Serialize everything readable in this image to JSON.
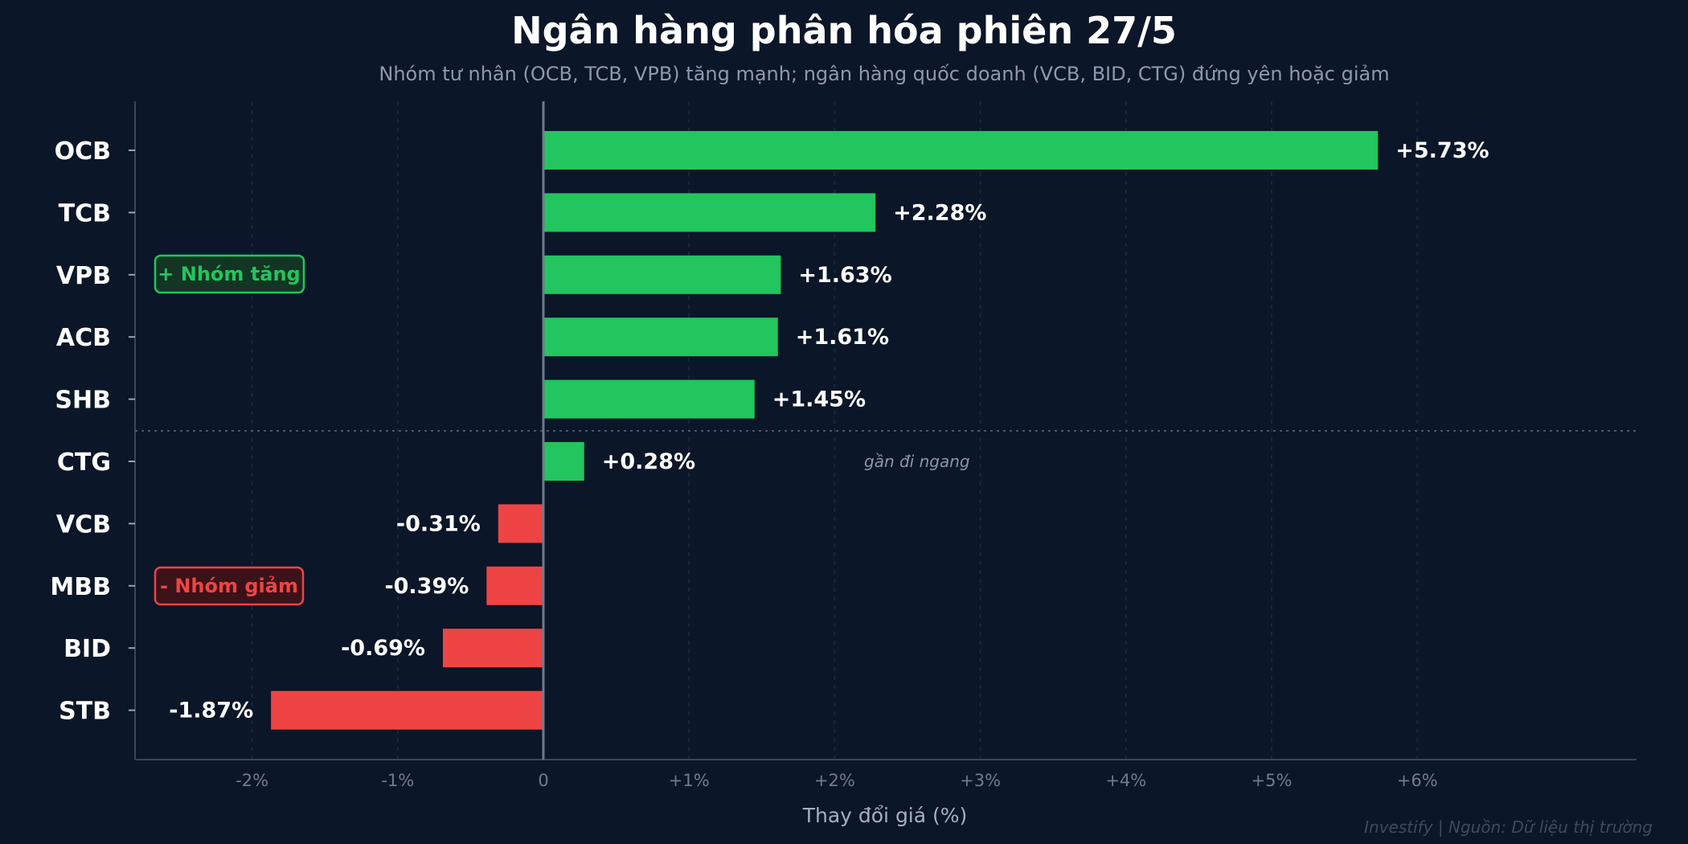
{
  "chart_data": {
    "type": "bar",
    "orientation": "horizontal",
    "title": "Ngân hàng phân hóa phiên 27/5",
    "subtitle": "Nhóm tư nhân (OCB, TCB, VPB) tăng mạnh; ngân hàng quốc doanh (VCB, BID, CTG) đứng yên hoặc giảm",
    "xlabel": "Thay đổi giá (%)",
    "ylabel": "",
    "categories": [
      "OCB",
      "TCB",
      "VPB",
      "ACB",
      "SHB",
      "CTG",
      "VCB",
      "MBB",
      "BID",
      "STB"
    ],
    "values": [
      5.73,
      2.28,
      1.63,
      1.61,
      1.45,
      0.28,
      -0.31,
      -0.39,
      -0.69,
      -1.87
    ],
    "value_labels": [
      "+5.73%",
      "+2.28%",
      "+1.63%",
      "+1.61%",
      "+1.45%",
      "+0.28%",
      "-0.31%",
      "-0.39%",
      "-0.69%",
      "-1.87%"
    ],
    "xlim": [
      -2.8,
      7.5
    ],
    "xticks": [
      -2,
      -1,
      0,
      1,
      2,
      3,
      4,
      5,
      6
    ],
    "xtick_labels": [
      "-2%",
      "-1%",
      "0",
      "+1%",
      "+2%",
      "+3%",
      "+4%",
      "+5%",
      "+6%"
    ],
    "grid": "vertical dashed",
    "colors": {
      "positive": "#22c55e",
      "negative": "#ef4444",
      "background": "#0b1628"
    },
    "annotations": {
      "group_up": "+ Nhóm tăng",
      "group_down": "- Nhóm giảm",
      "flat_note": "gần đi ngang"
    },
    "footer": "Investify  |  Nguồn: Dữ liệu thị trường"
  }
}
